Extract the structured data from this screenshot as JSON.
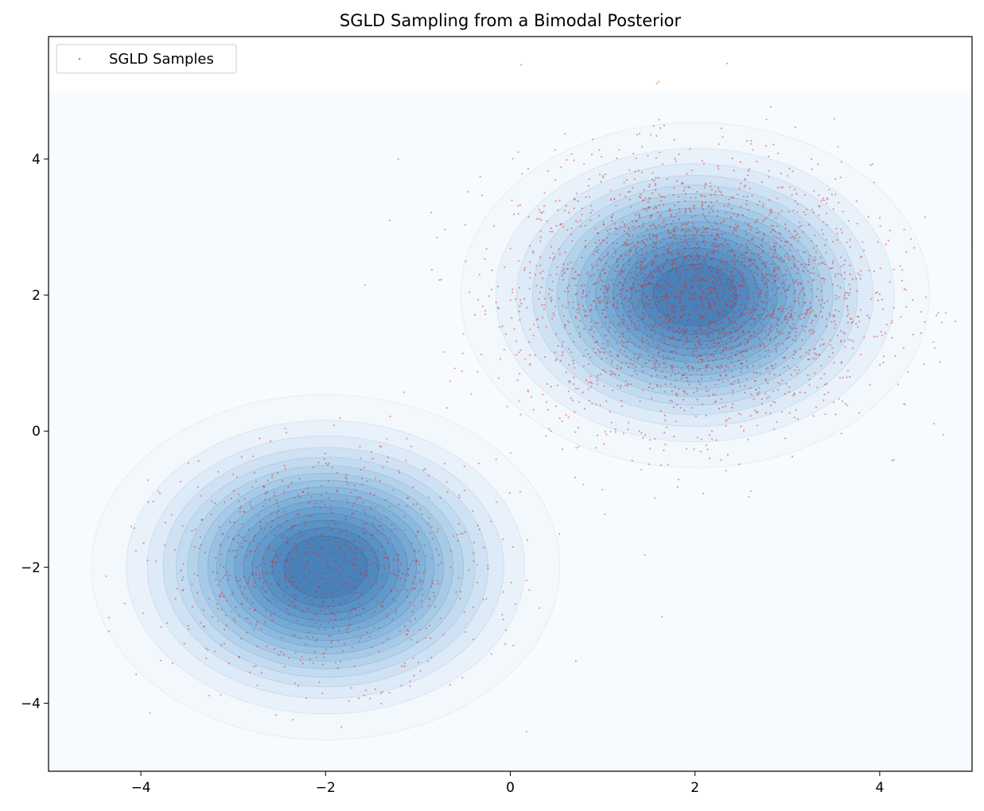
{
  "chart_data": {
    "type": "scatter",
    "title": "SGLD Sampling from a Bimodal Posterior",
    "xlabel": "",
    "ylabel": "",
    "xlim": [
      -5,
      5
    ],
    "ylim": [
      -5,
      5.8
    ],
    "xticks": [
      -4,
      -2,
      0,
      2,
      4
    ],
    "yticks": [
      -4,
      -2,
      0,
      2,
      4
    ],
    "xtick_labels": [
      "−4",
      "−2",
      "0",
      "2",
      "4"
    ],
    "ytick_labels": [
      "−4",
      "−2",
      "0",
      "2",
      "4"
    ],
    "grid": false,
    "legend": {
      "placement": "top-left",
      "entries": [
        "SGLD Samples"
      ]
    },
    "background_density": {
      "kind": "filled-contour",
      "extent": {
        "x": [
          -5,
          5
        ],
        "y": [
          -5,
          5
        ]
      },
      "modes": [
        {
          "mean": [
            2,
            2
          ],
          "std": 1,
          "weight": 0.5
        },
        {
          "mean": [
            -2,
            -2
          ],
          "std": 1,
          "weight": 0.5
        }
      ],
      "colormap": "Blues"
    },
    "series": [
      {
        "name": "SGLD Samples",
        "color": "#d62728",
        "marker": "dot",
        "clusters": [
          {
            "center": [
              2.0,
              2.0
            ],
            "spread": [
              0.95,
              0.95
            ],
            "approx_count": 3000
          },
          {
            "center": [
              -2.0,
              -2.0
            ],
            "spread": [
              0.85,
              0.8
            ],
            "approx_count": 1000
          }
        ]
      }
    ]
  }
}
